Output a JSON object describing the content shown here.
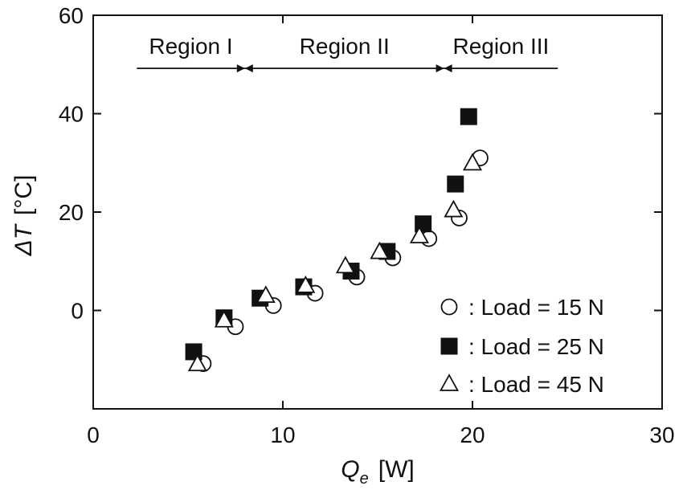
{
  "chart_data": {
    "type": "scatter",
    "title": "",
    "xlabel": {
      "symbol": "Q",
      "subscript": "e",
      "unit": "[W]"
    },
    "ylabel": {
      "symbol": "ΔT",
      "unit": "[°C]"
    },
    "xlim": [
      0,
      30
    ],
    "ylim": [
      -20,
      60
    ],
    "xticks": [
      0,
      10,
      20,
      30
    ],
    "yticks": [
      0,
      20,
      40,
      60
    ],
    "xtick_labels": [
      "0",
      "10",
      "20",
      "30"
    ],
    "ytick_labels": [
      "0",
      "20",
      "40",
      "60"
    ],
    "grid": false,
    "legend_position": "bottom-right",
    "series": [
      {
        "name": ": Load = 15 N",
        "marker": "open-circle",
        "x": [
          5.8,
          7.5,
          9.5,
          11.7,
          13.9,
          15.8,
          17.7,
          19.3,
          20.4
        ],
        "y": [
          -10.8,
          -3.3,
          1.0,
          3.5,
          6.8,
          10.7,
          14.6,
          18.8,
          31.0
        ]
      },
      {
        "name": ": Load = 25 N",
        "marker": "filled-square",
        "x": [
          5.3,
          6.9,
          8.8,
          11.1,
          13.6,
          15.5,
          17.4,
          19.1,
          19.8
        ],
        "y": [
          -8.4,
          -1.5,
          2.5,
          4.8,
          8.0,
          12.0,
          17.6,
          25.7,
          39.4
        ]
      },
      {
        "name": ": Load = 45 N",
        "marker": "open-triangle",
        "x": [
          5.5,
          6.9,
          9.1,
          11.2,
          13.3,
          15.1,
          17.2,
          19.0,
          20.0
        ],
        "y": [
          -10.9,
          -2.0,
          3.0,
          5.0,
          9.0,
          11.9,
          15.1,
          20.4,
          29.9
        ]
      }
    ],
    "annotations": {
      "regions": [
        {
          "label": "Region I",
          "from": 2.3,
          "to": 8.0,
          "arrow_start": false,
          "arrow_end": true
        },
        {
          "label": "Region II",
          "from": 8.0,
          "to": 18.5,
          "arrow_start": true,
          "arrow_end": true
        },
        {
          "label": "Region III",
          "from": 18.5,
          "to": 24.5,
          "arrow_start": true,
          "arrow_end": false
        }
      ],
      "region_line_y": 49.2
    }
  }
}
